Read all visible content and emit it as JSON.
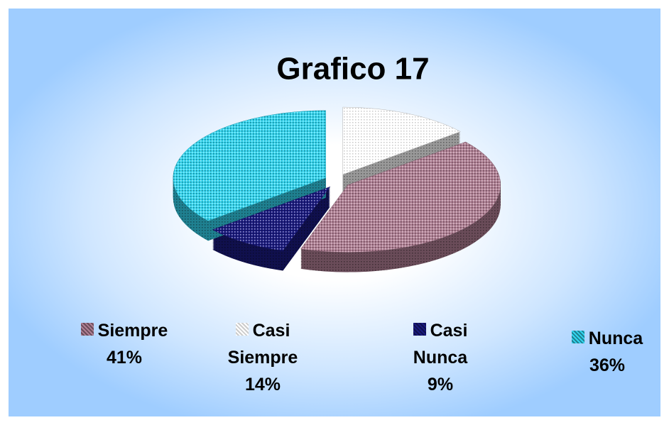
{
  "chart_data": {
    "type": "pie",
    "title": "Grafico 17",
    "categories": [
      "Siempre",
      "Casi Siempre",
      "Casi Nunca",
      "Nunca"
    ],
    "values": [
      41,
      14,
      9,
      36
    ],
    "value_labels": [
      "41%",
      "14%",
      "9%",
      "36%"
    ],
    "colors": [
      "#b07f94",
      "#ffffff",
      "#1a1a80",
      "#33d6f0"
    ],
    "legend": "bottom"
  }
}
